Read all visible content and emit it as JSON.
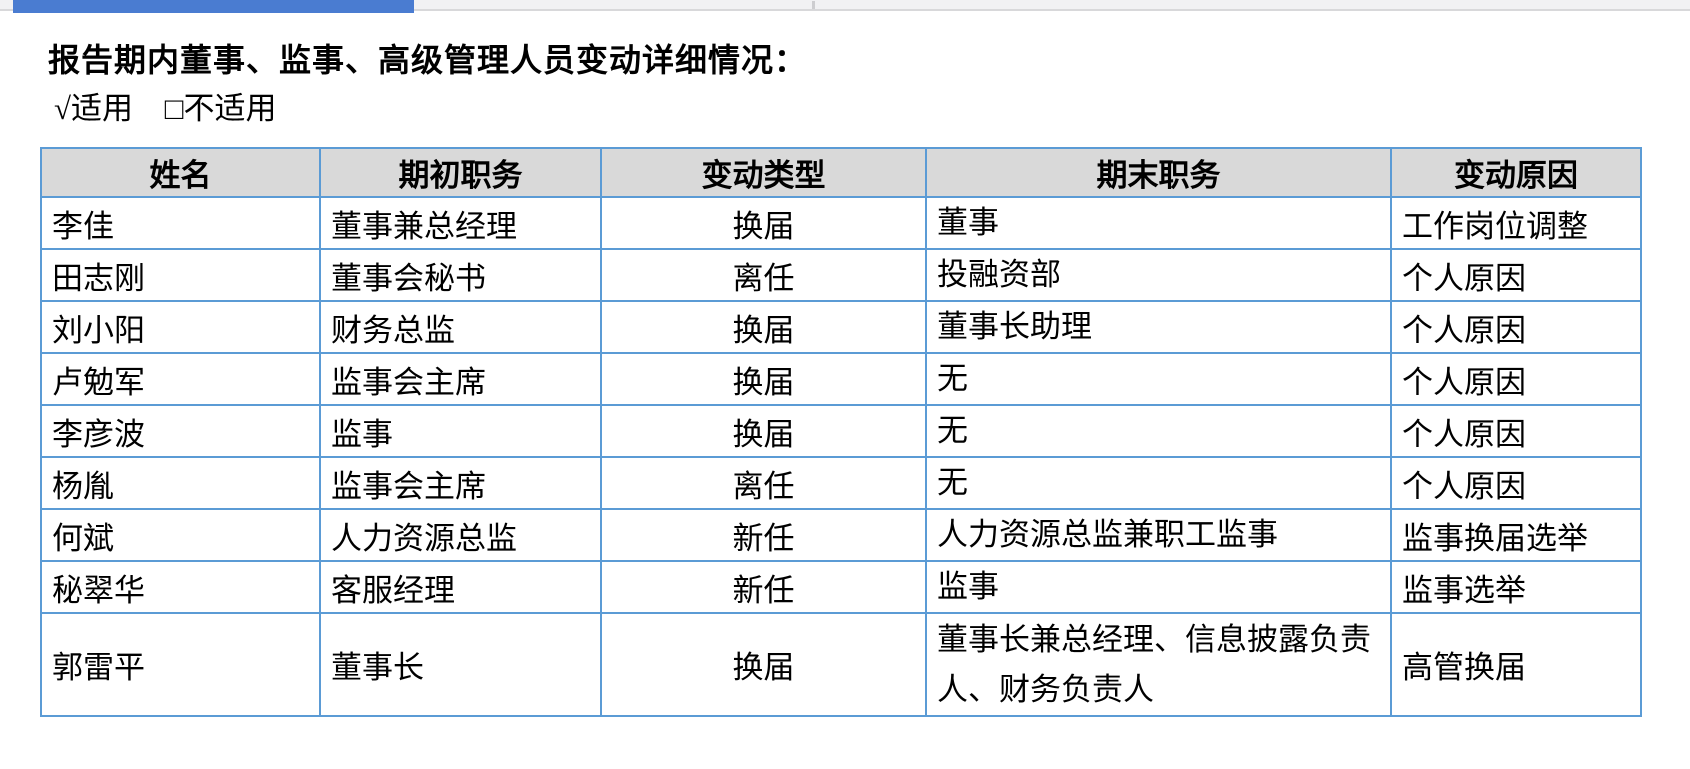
{
  "title": "报告期内董事、监事、高级管理人员变动详细情况：",
  "applicability": {
    "applicable": "√适用",
    "not_applicable": "□不适用"
  },
  "table": {
    "headers": [
      "姓名",
      "期初职务",
      "变动类型",
      "期末职务",
      "变动原因"
    ],
    "rows": [
      [
        "李佳",
        "董事兼总经理",
        "换届",
        "董事",
        "工作岗位调整"
      ],
      [
        "田志刚",
        "董事会秘书",
        "离任",
        "投融资部",
        "个人原因"
      ],
      [
        "刘小阳",
        "财务总监",
        "换届",
        "董事长助理",
        "个人原因"
      ],
      [
        "卢勉军",
        "监事会主席",
        "换届",
        "无",
        "个人原因"
      ],
      [
        "李彦波",
        "监事",
        "换届",
        "无",
        "个人原因"
      ],
      [
        "杨胤",
        "监事会主席",
        "离任",
        "无",
        "个人原因"
      ],
      [
        "何斌",
        "人力资源总监",
        "新任",
        "人力资源总监兼职工监事",
        "监事换届选举"
      ],
      [
        "秘翠华",
        "客服经理",
        "新任",
        "监事",
        "监事选举"
      ],
      [
        "郭雷平",
        "董事长",
        "换届",
        "董事长兼总经理、信息披露负责人、财务负责人",
        "高管换届"
      ]
    ]
  },
  "colors": {
    "progress_blue": "#4a7cd1",
    "table_border": "#5b9bd5",
    "header_bg": "#d9d9d9",
    "topbar_bg": "#f1f1f3",
    "topbar_edge": "#d8d8da"
  }
}
